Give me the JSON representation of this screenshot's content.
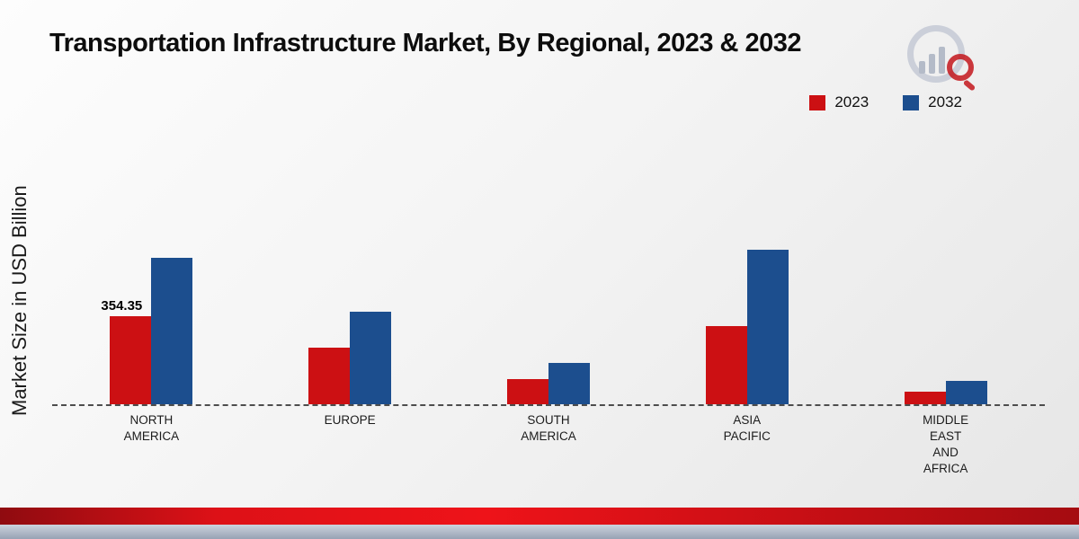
{
  "title": "Transportation Infrastructure Market, By Regional, 2023 & 2032",
  "ylabel": "Market Size in USD Billion",
  "legend": [
    {
      "label": "2023",
      "color": "#cc1013"
    },
    {
      "label": "2032",
      "color": "#1c4e8e"
    }
  ],
  "logo": {
    "name": "brand-logo"
  },
  "chart_data": {
    "type": "bar",
    "categories": [
      "NORTH AMERICA",
      "EUROPE",
      "SOUTH AMERICA",
      "ASIA PACIFIC",
      "MIDDLE EAST AND AFRICA"
    ],
    "category_lines": [
      [
        "NORTH",
        "AMERICA"
      ],
      [
        "EUROPE"
      ],
      [
        "SOUTH",
        "AMERICA"
      ],
      [
        "ASIA",
        "PACIFIC"
      ],
      [
        "MIDDLE",
        "EAST",
        "AND",
        "AFRICA"
      ]
    ],
    "series": [
      {
        "name": "2023",
        "color": "#cc1013",
        "values": [
          354.35,
          228,
          101,
          316,
          50
        ]
      },
      {
        "name": "2032",
        "color": "#1c4e8e",
        "values": [
          590,
          372,
          168,
          622,
          93
        ]
      }
    ],
    "annotations": [
      {
        "series_index": 0,
        "category_index": 0,
        "text": "354.35"
      }
    ],
    "title": "Transportation Infrastructure Market, By Regional, 2023 & 2032",
    "xlabel": "",
    "ylabel": "Market Size in USD Billion",
    "ylim": [
      0,
      650
    ],
    "grid": false,
    "legend_position": "top-right"
  }
}
